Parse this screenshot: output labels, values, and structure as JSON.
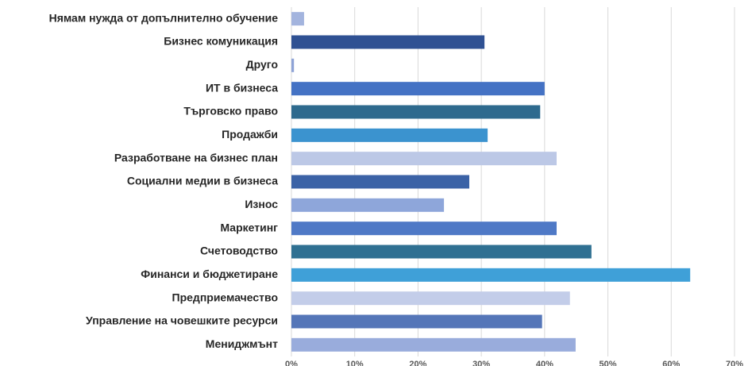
{
  "chart_data": {
    "type": "barh",
    "categories": [
      "Нямам нужда от допълнително обучение",
      "Бизнес комуникация",
      "Друго",
      "ИТ в бизнеса",
      "Търговско право",
      "Продажби",
      "Разработване на бизнес план",
      "Социални медии в бизнеса",
      "Износ",
      "Маркетинг",
      "Счетоводство",
      "Финанси и бюджетиране",
      "Предприемачество",
      "Управление на човешките ресурси",
      "Мениджмънт"
    ],
    "values": [
      2,
      30.5,
      0.4,
      40,
      39.3,
      31,
      41.9,
      28.1,
      24.1,
      41.9,
      47.4,
      63,
      44,
      39.6,
      44.9
    ],
    "colors": [
      "#a3b4de",
      "#2f5193",
      "#8ea3d6",
      "#4472c4",
      "#2e6a8e",
      "#3b93cf",
      "#bcc8e6",
      "#3b62a6",
      "#8ea6da",
      "#4f79c6",
      "#2f7092",
      "#3fa0d8",
      "#c3cde9",
      "#5576b8",
      "#99acdc"
    ],
    "xlim": [
      0,
      70
    ],
    "xticks": [
      {
        "value": 0,
        "label": "0%"
      },
      {
        "value": 10,
        "label": "10%"
      },
      {
        "value": 20,
        "label": "20%"
      },
      {
        "value": 30,
        "label": "30%"
      },
      {
        "value": 40,
        "label": "40%"
      },
      {
        "value": 50,
        "label": "50%"
      },
      {
        "value": 60,
        "label": "60%"
      },
      {
        "value": 70,
        "label": "70%"
      }
    ],
    "grid": true
  }
}
